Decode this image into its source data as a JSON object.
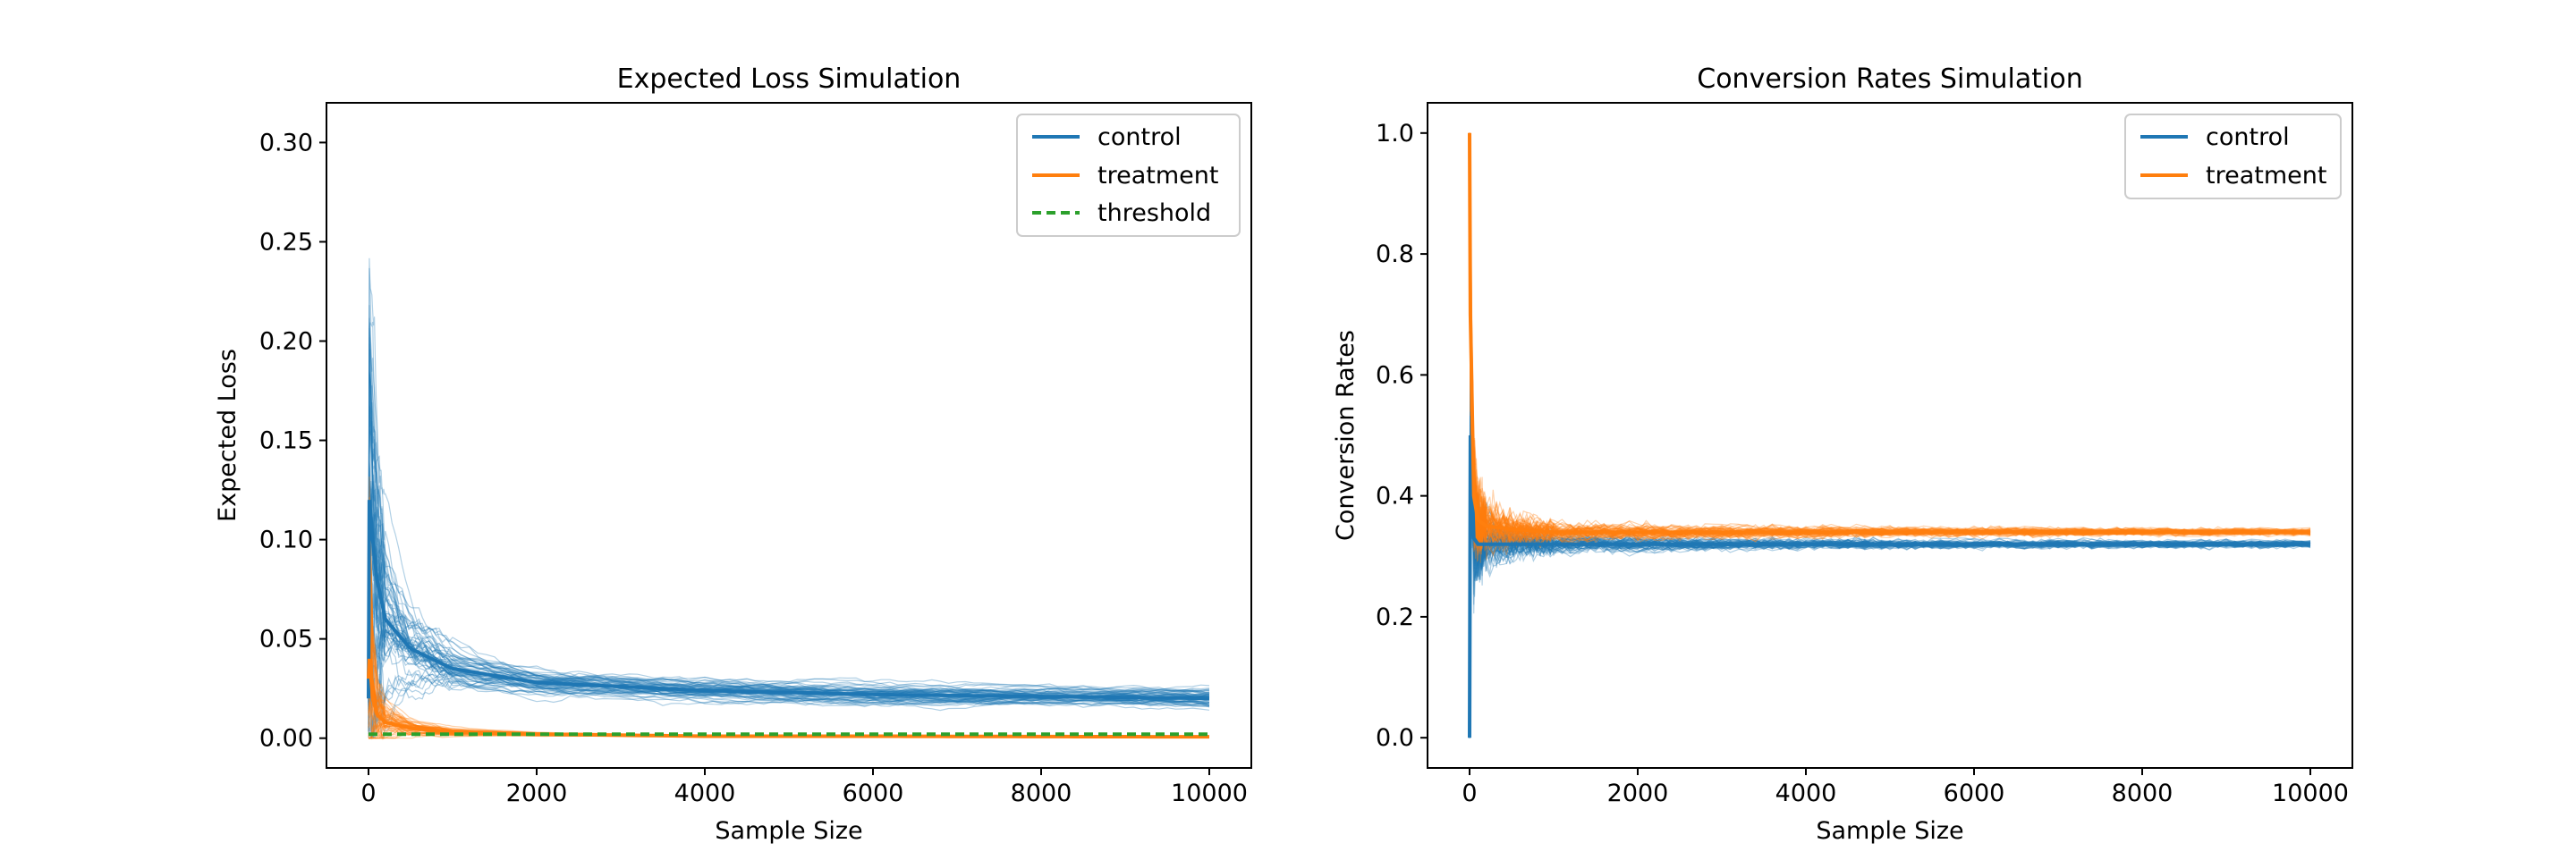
{
  "colors": {
    "control": "#1f77b4",
    "treatment": "#ff7f0e",
    "threshold": "#2ca02c"
  },
  "chart_data": [
    {
      "type": "line",
      "title": "Expected Loss Simulation",
      "xlabel": "Sample Size",
      "ylabel": "Expected Loss",
      "xlim": [
        -500,
        10500
      ],
      "ylim": [
        -0.015,
        0.32
      ],
      "xticks": [
        0,
        2000,
        4000,
        6000,
        8000,
        10000
      ],
      "xtick_labels": [
        "0",
        "2000",
        "4000",
        "6000",
        "8000",
        "10000"
      ],
      "yticks": [
        0.0,
        0.05,
        0.1,
        0.15,
        0.2,
        0.25,
        0.3
      ],
      "ytick_labels": [
        "0.00",
        "0.05",
        "0.10",
        "0.15",
        "0.20",
        "0.25",
        "0.30"
      ],
      "legend_position": "top-right",
      "legend": [
        "control",
        "treatment",
        "threshold"
      ],
      "grid": false,
      "series": [
        {
          "name": "control",
          "style": "solid",
          "simulated_runs": true,
          "x": [
            0,
            10,
            50,
            100,
            200,
            500,
            1000,
            2000,
            4000,
            6000,
            8000,
            10000
          ],
          "values": [
            0.02,
            0.12,
            0.1,
            0.08,
            0.06,
            0.045,
            0.035,
            0.028,
            0.024,
            0.022,
            0.021,
            0.02
          ]
        },
        {
          "name": "treatment",
          "style": "solid",
          "simulated_runs": true,
          "x": [
            0,
            10,
            50,
            100,
            200,
            500,
            1000,
            2000,
            4000,
            6000,
            8000,
            10000
          ],
          "values": [
            0.03,
            0.04,
            0.02,
            0.012,
            0.008,
            0.005,
            0.003,
            0.002,
            0.001,
            0.001,
            0.0008,
            0.0007
          ]
        },
        {
          "name": "threshold",
          "style": "dashed",
          "x": [
            0,
            10000
          ],
          "values": [
            0.002,
            0.002
          ]
        }
      ]
    },
    {
      "type": "line",
      "title": "Conversion Rates Simulation",
      "xlabel": "Sample Size",
      "ylabel": "Conversion Rates",
      "xlim": [
        -500,
        10500
      ],
      "ylim": [
        -0.05,
        1.05
      ],
      "xticks": [
        0,
        2000,
        4000,
        6000,
        8000,
        10000
      ],
      "xtick_labels": [
        "0",
        "2000",
        "4000",
        "6000",
        "8000",
        "10000"
      ],
      "yticks": [
        0.0,
        0.2,
        0.4,
        0.6,
        0.8,
        1.0
      ],
      "ytick_labels": [
        "0.0",
        "0.2",
        "0.4",
        "0.6",
        "0.8",
        "1.0"
      ],
      "legend_position": "top-right",
      "legend": [
        "control",
        "treatment"
      ],
      "grid": false,
      "series": [
        {
          "name": "control",
          "style": "solid",
          "simulated_runs": true,
          "x": [
            0,
            10,
            50,
            100,
            200,
            500,
            1000,
            2000,
            4000,
            6000,
            8000,
            10000
          ],
          "values": [
            0.0,
            0.5,
            0.33,
            0.32,
            0.32,
            0.32,
            0.32,
            0.32,
            0.32,
            0.32,
            0.32,
            0.32
          ]
        },
        {
          "name": "treatment",
          "style": "solid",
          "simulated_runs": true,
          "x": [
            0,
            10,
            50,
            100,
            200,
            500,
            1000,
            2000,
            4000,
            6000,
            8000,
            10000
          ],
          "values": [
            1.0,
            0.7,
            0.4,
            0.36,
            0.35,
            0.345,
            0.34,
            0.34,
            0.34,
            0.34,
            0.34,
            0.34
          ]
        }
      ]
    }
  ]
}
